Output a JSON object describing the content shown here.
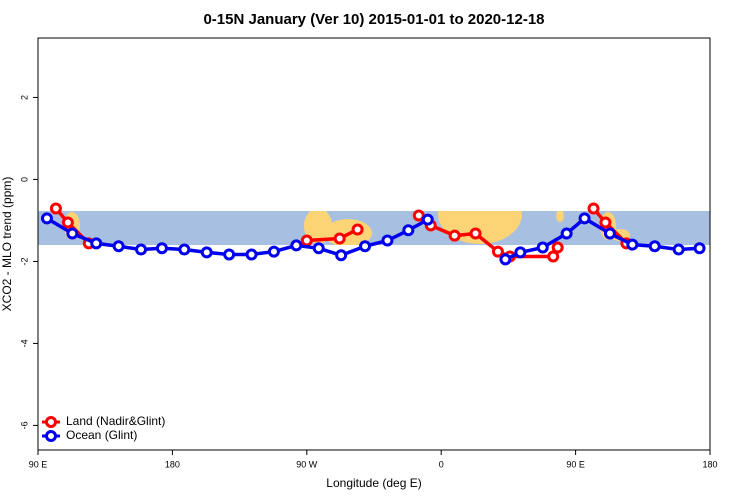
{
  "chart_data": {
    "type": "line",
    "title": "0-15N January (Ver 10)   2015-01-01 to 2020-12-18",
    "xlabel": "Longitude (deg E)",
    "ylabel": "XCO2 - MLO trend (ppm)",
    "xlim": [
      90,
      540
    ],
    "ylim": [
      -6.6,
      3.45
    ],
    "xticks": [
      {
        "value": 90,
        "label": "90 E"
      },
      180,
      {
        "value": 270,
        "label": "90 W"
      },
      {
        "value": 360,
        "label": "0"
      },
      {
        "value": 450,
        "label": "90 E"
      },
      {
        "value": 540,
        "label": "180"
      }
    ],
    "yticks": [
      2,
      0,
      -2,
      -4,
      -6
    ],
    "legend": "bottom-left",
    "series": [
      {
        "name": "Land (Nadir&Glint)",
        "color": "#ff0000",
        "x": [
          102,
          110,
          124,
          null,
          270,
          292,
          304,
          null,
          345,
          353,
          369,
          383,
          398,
          406,
          435,
          438,
          null,
          462,
          470,
          484
        ],
        "values": [
          -0.71,
          -1.05,
          -1.56,
          null,
          -1.49,
          -1.44,
          -1.22,
          null,
          -0.88,
          -1.12,
          -1.37,
          -1.32,
          -1.76,
          -1.88,
          -1.88,
          -1.66,
          null,
          -0.71,
          -1.05,
          -1.56
        ]
      },
      {
        "name": "Ocean (Glint)",
        "color": "#0000ee",
        "x": [
          96,
          113,
          129,
          144,
          159,
          173,
          188,
          203,
          218,
          233,
          248,
          263,
          278,
          293,
          309,
          324,
          338,
          351,
          null,
          403,
          413,
          428,
          444,
          456,
          473,
          488,
          503,
          519,
          533
        ],
        "values": [
          -0.95,
          -1.32,
          -1.56,
          -1.63,
          -1.71,
          -1.68,
          -1.71,
          -1.78,
          -1.83,
          -1.83,
          -1.76,
          -1.61,
          -1.68,
          -1.85,
          -1.63,
          -1.49,
          -1.24,
          -0.98,
          null,
          -1.95,
          -1.78,
          -1.66,
          -1.32,
          -0.95,
          -1.32,
          -1.59,
          -1.63,
          -1.71,
          -1.68
        ]
      }
    ]
  }
}
